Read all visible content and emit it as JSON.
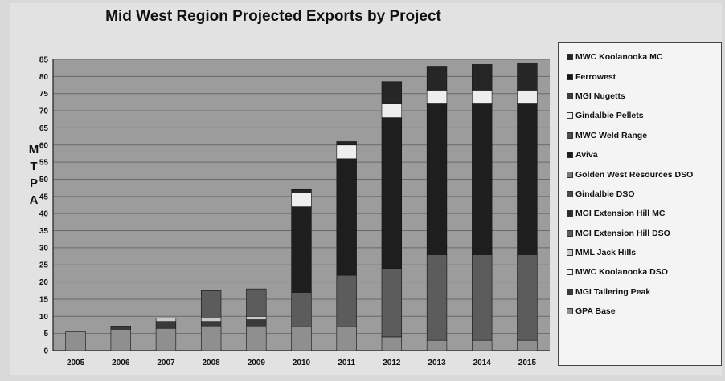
{
  "chart_data": {
    "type": "bar",
    "stacked": true,
    "title": "Mid West Region Projected Exports by Project",
    "ylabel": "M\nT\nP\nA",
    "xlabel": "",
    "ylim": [
      0,
      85
    ],
    "yticks": [
      0,
      5,
      10,
      15,
      20,
      25,
      30,
      35,
      40,
      45,
      50,
      55,
      60,
      65,
      70,
      75,
      80,
      85
    ],
    "categories": [
      "2005",
      "2006",
      "2007",
      "2008",
      "2009",
      "2010",
      "2011",
      "2012",
      "2013",
      "2014",
      "2015"
    ],
    "grid": true,
    "legend_position": "right",
    "series": [
      {
        "name": "GPA Base",
        "color": "#8f8f8f",
        "values": [
          5.5,
          6,
          6.5,
          7,
          7,
          7,
          7,
          4,
          3,
          3,
          3
        ]
      },
      {
        "name": "MGI Tallering Peak",
        "color": "#3a3a3a",
        "values": [
          0,
          1,
          2,
          1.5,
          2,
          0,
          0,
          0,
          0,
          0,
          0
        ]
      },
      {
        "name": "MWC Koolanooka DSO",
        "color": "#f2f2f2",
        "values": [
          0,
          0,
          0,
          0,
          0,
          0,
          0,
          0,
          0,
          0,
          0
        ]
      },
      {
        "name": "MML Jack Hills",
        "color": "#c9c9c9",
        "values": [
          0,
          0,
          1,
          1,
          1,
          0,
          0,
          0,
          0,
          0,
          0
        ]
      },
      {
        "name": "MGI Extension Hill DSO",
        "color": "#5c5c5c",
        "values": [
          0,
          0,
          0,
          8,
          8,
          10,
          15,
          20,
          25,
          25,
          25
        ]
      },
      {
        "name": "MGI Extension Hill MC",
        "color": "#2b2b2b",
        "values": [
          0,
          0,
          0,
          0,
          0,
          0,
          0,
          0,
          0,
          0,
          0
        ]
      },
      {
        "name": "Gindalbie DSO",
        "color": "#4a4a4a",
        "values": [
          0,
          0,
          0,
          0,
          0,
          0,
          0,
          0,
          0,
          0,
          0
        ]
      },
      {
        "name": "Golden West Resources DSO",
        "color": "#7a7a7a",
        "values": [
          0,
          0,
          0,
          0,
          0,
          0,
          0,
          0,
          0,
          0,
          0
        ]
      },
      {
        "name": "Aviva",
        "color": "#1e1e1e",
        "values": [
          0,
          0,
          0,
          0,
          0,
          25,
          34,
          44,
          44,
          44,
          44
        ]
      },
      {
        "name": "MWC Weld Range",
        "color": "#4f4f4f",
        "values": [
          0,
          0,
          0,
          0,
          0,
          0,
          0,
          0,
          0,
          0,
          0
        ]
      },
      {
        "name": "Gindalbie Pellets",
        "color": "#eeeeee",
        "values": [
          0,
          0,
          0,
          0,
          0,
          4,
          4,
          4,
          4,
          4,
          4
        ]
      },
      {
        "name": "MGI Nugetts",
        "color": "#3e3e3e",
        "values": [
          0,
          0,
          0,
          0,
          0,
          0,
          0,
          0,
          0,
          0,
          0
        ]
      },
      {
        "name": "Ferrowest",
        "color": "#161616",
        "values": [
          0,
          0,
          0,
          0,
          0,
          0,
          0,
          0,
          0,
          0,
          0
        ]
      },
      {
        "name": "MWC Koolanooka MC",
        "color": "#262626",
        "values": [
          0,
          0,
          0,
          0,
          0,
          1,
          1,
          6.5,
          7,
          7.5,
          8
        ]
      }
    ]
  }
}
